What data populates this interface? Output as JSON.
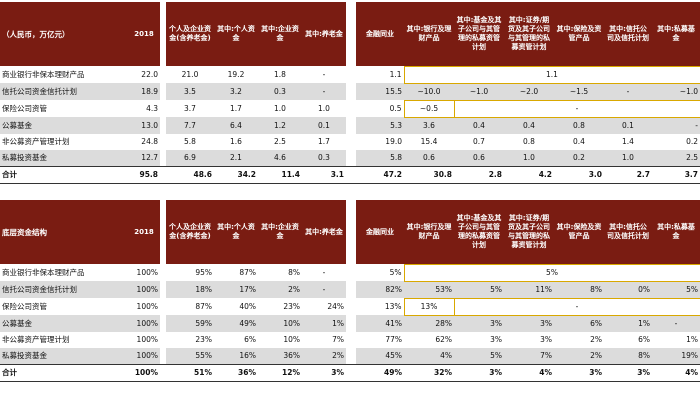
{
  "table1": {
    "header": {
      "label": "（人民币，万亿元）",
      "year": "2018",
      "individual": "个人及企业资金(含养老金)",
      "of_personal": "其中:个人资金",
      "of_corporate": "其中:企业资金",
      "of_pension": "其中:养老金",
      "financial": "金融同业",
      "of_bank": "其中:银行及理财产品",
      "of_fund": "其中:基金及其子公司与其管理的私募资管计划",
      "of_securities": "其中:证券/期货及其子公司与其管理的私募资管计划",
      "of_insurance": "其中:保险及资管产品",
      "of_trust": "其中:信托公司及信托计划",
      "of_private": "其中:私募基金"
    },
    "rows": [
      {
        "name": "商业银行非保本理财产品",
        "v2018": "22.0",
        "ind": "21.0",
        "per": "19.2",
        "corp": "1.8",
        "pen": "-",
        "fin": "1.1",
        "span": "1.1"
      },
      {
        "name": "信托公司资金信托计划",
        "v2018": "18.9",
        "ind": "3.5",
        "per": "3.2",
        "corp": "0.3",
        "pen": "-",
        "fin": "15.5",
        "bank": "~10.0",
        "fund": "~1.0",
        "sec": "~2.0",
        "ins": "~1.5",
        "trust": "-",
        "priv": "~1.0"
      },
      {
        "name": "保险公司资管",
        "v2018": "4.3",
        "ind": "3.7",
        "per": "1.7",
        "corp": "1.0",
        "pen": "1.0",
        "fin": "0.5",
        "bank": "~0.5",
        "span": "-"
      },
      {
        "name": "公募基金",
        "v2018": "13.0",
        "ind": "7.7",
        "per": "6.4",
        "corp": "1.2",
        "pen": "0.1",
        "fin": "5.3",
        "bank": "3.6",
        "fund": "0.4",
        "sec": "0.4",
        "ins": "0.8",
        "trust": "0.1",
        "priv": "-"
      },
      {
        "name": "非公募资产管理计划",
        "v2018": "24.8",
        "ind": "5.8",
        "per": "1.6",
        "corp": "2.5",
        "pen": "1.7",
        "fin": "19.0",
        "bank": "15.4",
        "fund": "0.7",
        "sec": "0.8",
        "ins": "0.4",
        "trust": "1.4",
        "priv": "0.2"
      },
      {
        "name": "私募投资基金",
        "v2018": "12.7",
        "ind": "6.9",
        "per": "2.1",
        "corp": "4.6",
        "pen": "0.3",
        "fin": "5.8",
        "bank": "0.6",
        "fund": "0.6",
        "sec": "1.0",
        "ins": "0.2",
        "trust": "1.0",
        "priv": "2.5"
      }
    ],
    "total": {
      "name": "合计",
      "v2018": "95.8",
      "ind": "48.6",
      "per": "34.2",
      "corp": "11.4",
      "pen": "3.1",
      "fin": "47.2",
      "bank": "30.8",
      "fund": "2.8",
      "sec": "4.2",
      "ins": "3.0",
      "trust": "2.7",
      "priv": "3.7"
    }
  },
  "table2": {
    "header": {
      "label": "底层资金结构",
      "year": "2018",
      "individual": "个人及企业资金(含养老金)",
      "of_personal": "其中:个人资金",
      "of_corporate": "其中:企业资金",
      "of_pension": "其中:养老金",
      "financial": "金融同业",
      "of_bank": "其中:银行及理财产品",
      "of_fund": "其中:基金及其子公司与其管理的私募资管计划",
      "of_securities": "其中:证券/期货及其子公司与其管理的私募资管计划",
      "of_insurance": "其中:保险及资管产品",
      "of_trust": "其中:信托公司及信托计划",
      "of_private": "其中:私募基金"
    },
    "rows": [
      {
        "name": "商业银行非保本理财产品",
        "v2018": "100%",
        "ind": "95%",
        "per": "87%",
        "corp": "8%",
        "pen": "-",
        "fin": "5%",
        "span": "5%"
      },
      {
        "name": "信托公司资金信托计划",
        "v2018": "100%",
        "ind": "18%",
        "per": "17%",
        "corp": "2%",
        "pen": "-",
        "fin": "82%",
        "bank": "53%",
        "fund": "5%",
        "sec": "11%",
        "ins": "8%",
        "trust": "0%",
        "priv": "5%"
      },
      {
        "name": "保险公司资管",
        "v2018": "100%",
        "ind": "87%",
        "per": "40%",
        "corp": "23%",
        "pen": "24%",
        "fin": "13%",
        "bank": "13%",
        "span": "-"
      },
      {
        "name": "公募基金",
        "v2018": "100%",
        "ind": "59%",
        "per": "49%",
        "corp": "10%",
        "pen": "1%",
        "fin": "41%",
        "bank": "28%",
        "fund": "3%",
        "sec": "3%",
        "ins": "6%",
        "trust": "1%",
        "priv": "-"
      },
      {
        "name": "非公募资产管理计划",
        "v2018": "100%",
        "ind": "23%",
        "per": "6%",
        "corp": "10%",
        "pen": "7%",
        "fin": "77%",
        "bank": "62%",
        "fund": "3%",
        "sec": "3%",
        "ins": "2%",
        "trust": "6%",
        "priv": "1%"
      },
      {
        "name": "私募投资基金",
        "v2018": "100%",
        "ind": "55%",
        "per": "16%",
        "corp": "36%",
        "pen": "2%",
        "fin": "45%",
        "bank": "4%",
        "fund": "5%",
        "sec": "7%",
        "ins": "2%",
        "trust": "8%",
        "priv": "19%"
      }
    ],
    "total": {
      "name": "合计",
      "v2018": "100%",
      "ind": "51%",
      "per": "36%",
      "corp": "12%",
      "pen": "3%",
      "fin": "49%",
      "bank": "32%",
      "fund": "3%",
      "sec": "4%",
      "ins": "3%",
      "trust": "3%",
      "priv": "4%"
    }
  }
}
